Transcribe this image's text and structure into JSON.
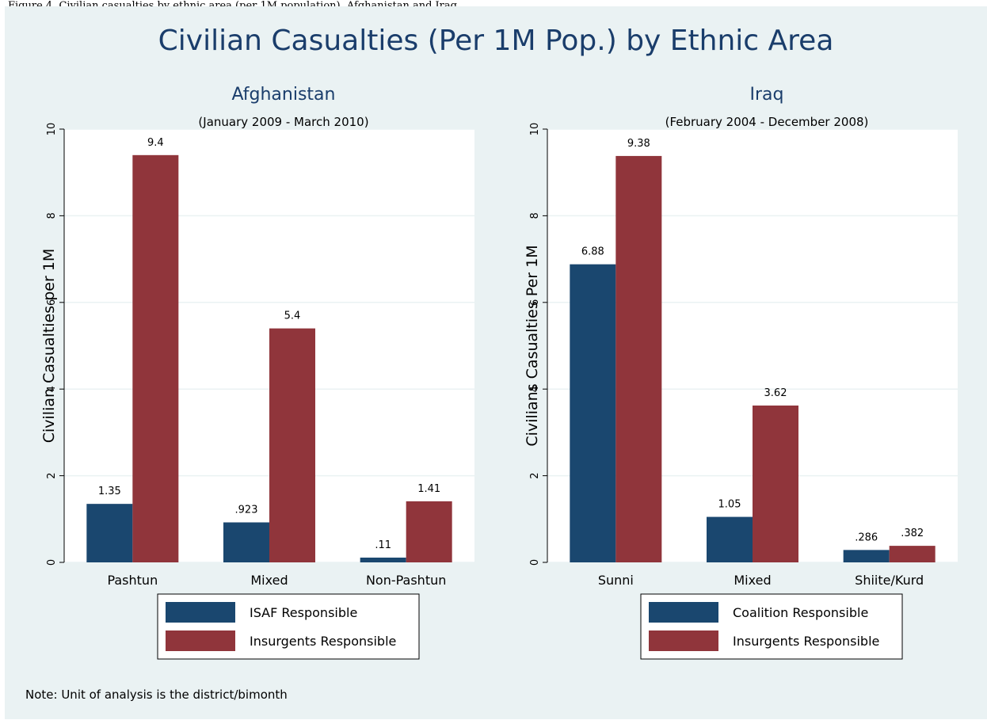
{
  "caption": "Figure 4. Civilian casualties by ethnic area (per 1M population), Afghanistan and Iraq",
  "title": "Civilian Casualties (Per 1M Pop.) by Ethnic Area",
  "note": "Note: Unit of analysis is the district/bimonth",
  "colors": {
    "series1": "#1a476f",
    "series2": "#90353b",
    "plot_bg": "#ffffff",
    "figure_bg": "#eaf2f3",
    "title": "#1a3d6b"
  },
  "chart_data": [
    {
      "type": "bar",
      "title": "Afghanistan",
      "subtitle": "(January 2009 - March 2010)",
      "xlabel": "",
      "ylabel": "Civilian Casualties per 1M",
      "ylim": [
        0,
        10
      ],
      "yticks": [
        0,
        2,
        4,
        6,
        8,
        10
      ],
      "grid": true,
      "legend_position": "bottom",
      "categories": [
        "Pashtun",
        "Mixed",
        "Non-Pashtun"
      ],
      "series": [
        {
          "name": "ISAF Responsible",
          "values": [
            1.35,
            0.923,
            0.11
          ],
          "labels": [
            "1.35",
            ".923",
            ".11"
          ]
        },
        {
          "name": "Insurgents Responsible",
          "values": [
            9.4,
            5.4,
            1.41
          ],
          "labels": [
            "9.4",
            "5.4",
            "1.41"
          ]
        }
      ]
    },
    {
      "type": "bar",
      "title": "Iraq",
      "subtitle": "(February 2004 - December 2008)",
      "xlabel": "",
      "ylabel": "Civilians Casualties Per 1M",
      "ylim": [
        0,
        10
      ],
      "yticks": [
        0,
        2,
        4,
        6,
        8,
        10
      ],
      "grid": true,
      "legend_position": "bottom",
      "categories": [
        "Sunni",
        "Mixed",
        "Shiite/Kurd"
      ],
      "series": [
        {
          "name": "Coalition Responsible",
          "values": [
            6.88,
            1.05,
            0.286
          ],
          "labels": [
            "6.88",
            "1.05",
            ".286"
          ]
        },
        {
          "name": "Insurgents Responsible",
          "values": [
            9.38,
            3.62,
            0.382
          ],
          "labels": [
            "9.38",
            "3.62",
            ".382"
          ]
        }
      ]
    }
  ]
}
